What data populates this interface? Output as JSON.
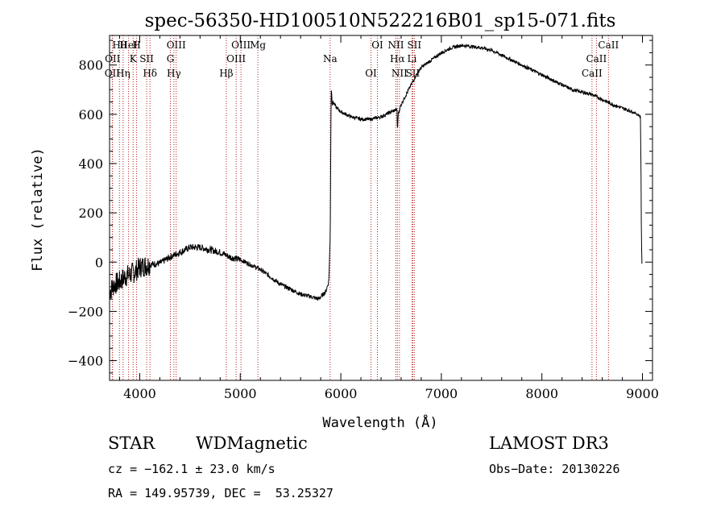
{
  "chart_data": {
    "type": "line",
    "title": "spec-56350-HD100510N522216B01_sp15-071.fits",
    "xlabel": "Wavelength (Å)",
    "ylabel": "Flux (relative)",
    "xlim": [
      3700,
      9100
    ],
    "ylim": [
      -480,
      920
    ],
    "xticks": [
      4000,
      5000,
      6000,
      7000,
      8000,
      9000
    ],
    "xtick_labels": [
      "4000",
      "5000",
      "6000",
      "7000",
      "8000",
      "9000"
    ],
    "yticks": [
      800,
      600,
      400,
      200,
      0,
      -200,
      -400
    ],
    "ytick_labels": [
      "800",
      "600",
      "400",
      "200",
      "0",
      "−200",
      "−400"
    ],
    "series": [
      {
        "name": "flux",
        "x": [
          3700,
          3750,
          3800,
          3850,
          3900,
          3950,
          4000,
          4100,
          4200,
          4300,
          4400,
          4500,
          4600,
          4700,
          4800,
          4900,
          5000,
          5100,
          5200,
          5300,
          5400,
          5500,
          5600,
          5700,
          5780,
          5850,
          5880,
          5895,
          5900,
          5905,
          5910,
          5915,
          5925,
          5950,
          6000,
          6100,
          6200,
          6300,
          6400,
          6450,
          6500,
          6560,
          6563,
          6570,
          6600,
          6650,
          6700,
          6750,
          6800,
          6900,
          7000,
          7100,
          7200,
          7300,
          7400,
          7500,
          7600,
          7700,
          7800,
          7900,
          8000,
          8100,
          8200,
          8300,
          8400,
          8500,
          8600,
          8700,
          8800,
          8900,
          8950,
          8980,
          8985,
          8990,
          8995
        ],
        "y": [
          -120,
          -90,
          -80,
          -60,
          -50,
          -40,
          -20,
          -10,
          -5,
          20,
          40,
          60,
          60,
          50,
          40,
          20,
          10,
          -10,
          -30,
          -60,
          -90,
          -110,
          -130,
          -140,
          -150,
          -120,
          -80,
          100,
          480,
          700,
          680,
          640,
          650,
          630,
          610,
          590,
          580,
          580,
          590,
          600,
          610,
          620,
          520,
          600,
          640,
          680,
          720,
          760,
          790,
          820,
          850,
          870,
          880,
          875,
          870,
          860,
          840,
          820,
          800,
          780,
          760,
          740,
          720,
          700,
          690,
          680,
          660,
          640,
          625,
          610,
          600,
          590,
          400,
          100,
          -5
        ]
      }
    ],
    "lines": [
      {
        "label": "Hθ",
        "x": 3798
      },
      {
        "label": "K",
        "x": 3934
      },
      {
        "label": "Hδ",
        "x": 4102
      },
      {
        "label": "OIII",
        "x": 4363
      },
      {
        "label": "OIII",
        "x": 4959
      },
      {
        "label": "OII",
        "x": 3727
      },
      {
        "label": "HeI",
        "x": 3889
      },
      {
        "label": "SII",
        "x": 4069
      },
      {
        "label": "Hγ",
        "x": 4340
      },
      {
        "label": "OIII",
        "x": 5007
      },
      {
        "label": "OII",
        "x": 3730
      },
      {
        "label": "Hη",
        "x": 3835
      },
      {
        "label": "H",
        "x": 3969
      },
      {
        "label": "G",
        "x": 4305
      },
      {
        "label": "Hβ",
        "x": 4861
      },
      {
        "label": "Mg",
        "x": 5175
      },
      {
        "label": "Na",
        "x": 5894
      },
      {
        "label": "OI",
        "x": 6300
      },
      {
        "label": "OI",
        "x": 6364
      },
      {
        "label": "Hα",
        "x": 6563
      },
      {
        "label": "SII",
        "x": 6716
      },
      {
        "label": "NII",
        "x": 6548
      },
      {
        "label": "Li",
        "x": 6708
      },
      {
        "label": "NII",
        "x": 6583
      },
      {
        "label": "SII",
        "x": 6731
      },
      {
        "label": "CaII",
        "x": 8542
      },
      {
        "label": "CaII",
        "x": 8498
      },
      {
        "label": "CaII",
        "x": 8662
      }
    ]
  },
  "info": {
    "object_type": "STAR",
    "subclass": "WDMagnetic",
    "survey": "LAMOST DR3",
    "cz": "cz = −162.1 ± 23.0 km/s",
    "obs_date": "Obs−Date: 20130226",
    "radec": "RA = 149.95739, DEC =  53.25327"
  },
  "colors": {
    "line_markers": "#b22222",
    "spectrum": "#000000"
  }
}
